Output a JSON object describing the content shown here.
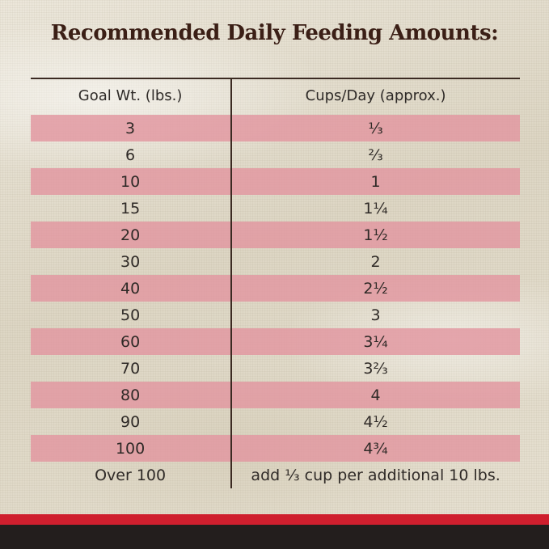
{
  "title": "Recommended Daily Feeding Amounts:",
  "table": {
    "headers": {
      "left": "Goal Wt. (lbs.)",
      "right": "Cups/Day (approx.)"
    },
    "rows": [
      {
        "weight": "3",
        "cups": "⅓"
      },
      {
        "weight": "6",
        "cups": "⅔"
      },
      {
        "weight": "10",
        "cups": "1"
      },
      {
        "weight": "15",
        "cups": "1¼"
      },
      {
        "weight": "20",
        "cups": "1½"
      },
      {
        "weight": "30",
        "cups": "2"
      },
      {
        "weight": "40",
        "cups": "2½"
      },
      {
        "weight": "50",
        "cups": "3"
      },
      {
        "weight": "60",
        "cups": "3¼"
      },
      {
        "weight": "70",
        "cups": "3⅔"
      },
      {
        "weight": "80",
        "cups": "4"
      },
      {
        "weight": "90",
        "cups": "4½"
      },
      {
        "weight": "100",
        "cups": "4¾"
      },
      {
        "weight": "Over 100",
        "cups": "add ⅓ cup per additional 10 lbs."
      }
    ]
  },
  "colors": {
    "title": "#3b1f16",
    "band": "#e296a0",
    "accent_red": "#cf1f2e",
    "footer_dark": "#231e1d"
  }
}
